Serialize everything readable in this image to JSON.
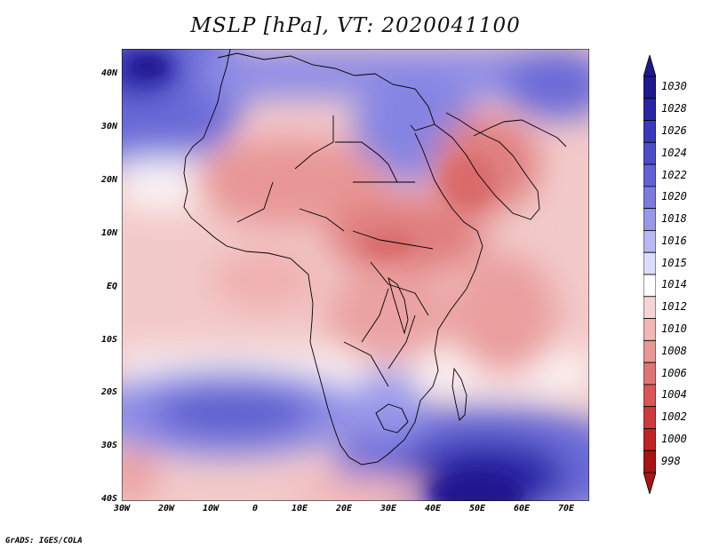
{
  "title": "MSLP [hPa], VT: 2020041100",
  "footer": "GrADS: IGES/COLA",
  "map": {
    "lat_labels": [
      "40N",
      "30N",
      "20N",
      "10N",
      "EQ",
      "10S",
      "20S",
      "30S",
      "40S"
    ],
    "lon_labels": [
      "30W",
      "20W",
      "10W",
      "0",
      "10E",
      "20E",
      "30E",
      "40E",
      "50E",
      "60E",
      "70E"
    ]
  },
  "colorbar": {
    "levels": [
      "1030",
      "1028",
      "1026",
      "1024",
      "1022",
      "1020",
      "1018",
      "1016",
      "1015",
      "1014",
      "1012",
      "1010",
      "1008",
      "1006",
      "1004",
      "1002",
      "1000",
      "998"
    ],
    "colors": [
      "#201890",
      "#2a25a6",
      "#3a38bb",
      "#4d4dc9",
      "#6262d4",
      "#7b7be0",
      "#9898ea",
      "#b8b8f2",
      "#dcdcfa",
      "#ffffff",
      "#f7d4d4",
      "#f2b6b6",
      "#e89696",
      "#e07474",
      "#d85656",
      "#ce3a3a",
      "#c22222",
      "#a81414"
    ]
  }
}
